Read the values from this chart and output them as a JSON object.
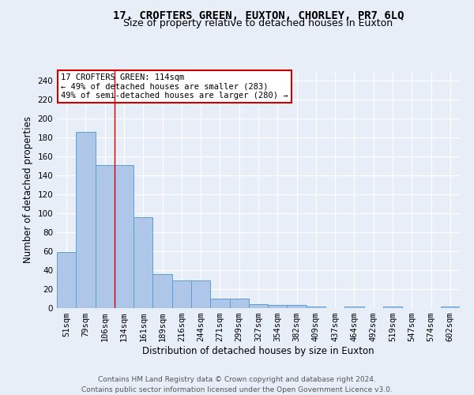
{
  "title": "17, CROFTERS GREEN, EUXTON, CHORLEY, PR7 6LQ",
  "subtitle": "Size of property relative to detached houses in Euxton",
  "xlabel": "Distribution of detached houses by size in Euxton",
  "ylabel": "Number of detached properties",
  "footer_line1": "Contains HM Land Registry data © Crown copyright and database right 2024.",
  "footer_line2": "Contains public sector information licensed under the Open Government Licence v3.0.",
  "categories": [
    "51sqm",
    "79sqm",
    "106sqm",
    "134sqm",
    "161sqm",
    "189sqm",
    "216sqm",
    "244sqm",
    "271sqm",
    "299sqm",
    "327sqm",
    "354sqm",
    "382sqm",
    "409sqm",
    "437sqm",
    "464sqm",
    "492sqm",
    "519sqm",
    "547sqm",
    "574sqm",
    "602sqm"
  ],
  "values": [
    59,
    186,
    151,
    151,
    96,
    36,
    29,
    29,
    10,
    10,
    4,
    3,
    3,
    2,
    0,
    2,
    0,
    2,
    0,
    0,
    2
  ],
  "bar_color": "#aec6e8",
  "bar_edge_color": "#5a9fd4",
  "background_color": "#e8eef8",
  "grid_color": "#ffffff",
  "vline_x": 2.5,
  "vline_color": "#cc0000",
  "annotation_title": "17 CROFTERS GREEN: 114sqm",
  "annotation_line1": "← 49% of detached houses are smaller (283)",
  "annotation_line2": "49% of semi-detached houses are larger (280) →",
  "annotation_box_color": "#ffffff",
  "annotation_box_edge_color": "#cc0000",
  "ylim": [
    0,
    250
  ],
  "yticks": [
    0,
    20,
    40,
    60,
    80,
    100,
    120,
    140,
    160,
    180,
    200,
    220,
    240
  ],
  "title_fontsize": 10,
  "subtitle_fontsize": 9,
  "xlabel_fontsize": 8.5,
  "ylabel_fontsize": 8.5,
  "tick_fontsize": 7.5,
  "annotation_fontsize": 7.5,
  "footer_fontsize": 6.5
}
